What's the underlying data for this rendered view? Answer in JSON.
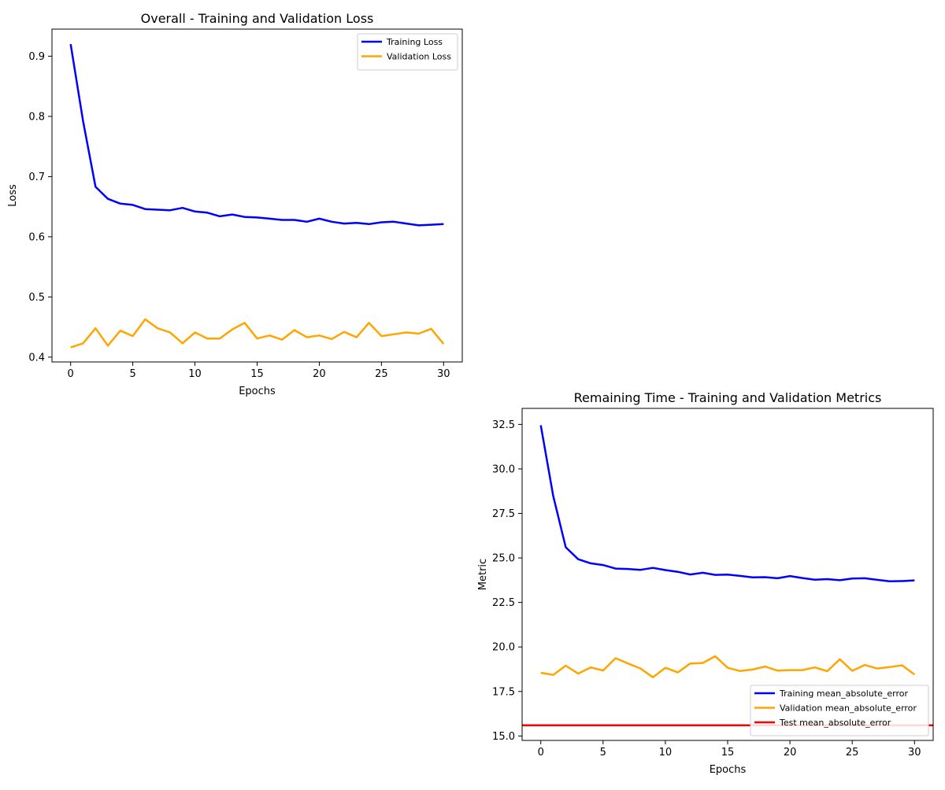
{
  "chart_data": [
    {
      "type": "line",
      "title": "Overall - Training and Validation Loss",
      "xlabel": "Epochs",
      "ylabel": "Loss",
      "xlim": [
        -1.5,
        31.5
      ],
      "ylim": [
        0.392,
        0.945
      ],
      "xticks": [
        0,
        5,
        10,
        15,
        20,
        25,
        30
      ],
      "xtick_labels": [
        "0",
        "5",
        "10",
        "15",
        "20",
        "25",
        "30"
      ],
      "yticks": [
        0.4,
        0.5,
        0.6,
        0.7,
        0.8,
        0.9
      ],
      "ytick_labels": [
        "0.4",
        "0.5",
        "0.6",
        "0.7",
        "0.8",
        "0.9"
      ],
      "grid": false,
      "legend_position": "upper right",
      "x": [
        0,
        1,
        2,
        3,
        4,
        5,
        6,
        7,
        8,
        9,
        10,
        11,
        12,
        13,
        14,
        15,
        16,
        17,
        18,
        19,
        20,
        21,
        22,
        23,
        24,
        25,
        26,
        27,
        28,
        29,
        30
      ],
      "series": [
        {
          "name": "Training Loss",
          "color": "#0000ff",
          "values": [
            0.92,
            0.792,
            0.683,
            0.663,
            0.655,
            0.653,
            0.646,
            0.645,
            0.644,
            0.648,
            0.642,
            0.64,
            0.634,
            0.637,
            0.633,
            0.632,
            0.63,
            0.628,
            0.628,
            0.625,
            0.63,
            0.625,
            0.622,
            0.623,
            0.621,
            0.624,
            0.625,
            0.622,
            0.619,
            0.62,
            0.621
          ]
        },
        {
          "name": "Validation Loss",
          "color": "#ffa500",
          "values": [
            0.416,
            0.423,
            0.448,
            0.419,
            0.444,
            0.435,
            0.463,
            0.448,
            0.441,
            0.423,
            0.441,
            0.431,
            0.431,
            0.446,
            0.457,
            0.431,
            0.436,
            0.429,
            0.445,
            0.433,
            0.436,
            0.43,
            0.442,
            0.433,
            0.457,
            0.435,
            0.438,
            0.441,
            0.439,
            0.447,
            0.422
          ]
        }
      ]
    },
    {
      "type": "line",
      "title": "Remaining Time - Training and Validation Metrics",
      "xlabel": "Epochs",
      "ylabel": "Metric",
      "xlim": [
        -1.5,
        31.5
      ],
      "ylim": [
        14.75,
        33.4
      ],
      "xticks": [
        0,
        5,
        10,
        15,
        20,
        25,
        30
      ],
      "xtick_labels": [
        "0",
        "5",
        "10",
        "15",
        "20",
        "25",
        "30"
      ],
      "yticks": [
        15.0,
        17.5,
        20.0,
        22.5,
        25.0,
        27.5,
        30.0,
        32.5
      ],
      "ytick_labels": [
        "15.0",
        "17.5",
        "20.0",
        "22.5",
        "25.0",
        "27.5",
        "30.0",
        "32.5"
      ],
      "grid": false,
      "legend_position": "lower right",
      "x": [
        0,
        1,
        2,
        3,
        4,
        5,
        6,
        7,
        8,
        9,
        10,
        11,
        12,
        13,
        14,
        15,
        16,
        17,
        18,
        19,
        20,
        21,
        22,
        23,
        24,
        25,
        26,
        27,
        28,
        29,
        30
      ],
      "series": [
        {
          "name": "Training mean_absolute_error",
          "color": "#0000ff",
          "values": [
            32.45,
            28.48,
            25.6,
            24.93,
            24.7,
            24.6,
            24.4,
            24.38,
            24.33,
            24.44,
            24.32,
            24.22,
            24.07,
            24.17,
            24.05,
            24.06,
            23.99,
            23.91,
            23.92,
            23.86,
            23.98,
            23.87,
            23.78,
            23.81,
            23.75,
            23.84,
            23.86,
            23.77,
            23.69,
            23.7,
            23.74
          ]
        },
        {
          "name": "Validation mean_absolute_error",
          "color": "#ffa500",
          "values": [
            18.55,
            18.43,
            18.95,
            18.5,
            18.85,
            18.68,
            19.37,
            19.07,
            18.79,
            18.3,
            18.83,
            18.57,
            19.07,
            19.1,
            19.48,
            18.83,
            18.65,
            18.73,
            18.9,
            18.67,
            18.7,
            18.7,
            18.85,
            18.64,
            19.31,
            18.66,
            18.99,
            18.79,
            18.87,
            18.97,
            18.45
          ]
        },
        {
          "name": "Test mean_absolute_error",
          "color": "#ff0000",
          "type": "hline",
          "value": 15.6
        }
      ]
    }
  ]
}
